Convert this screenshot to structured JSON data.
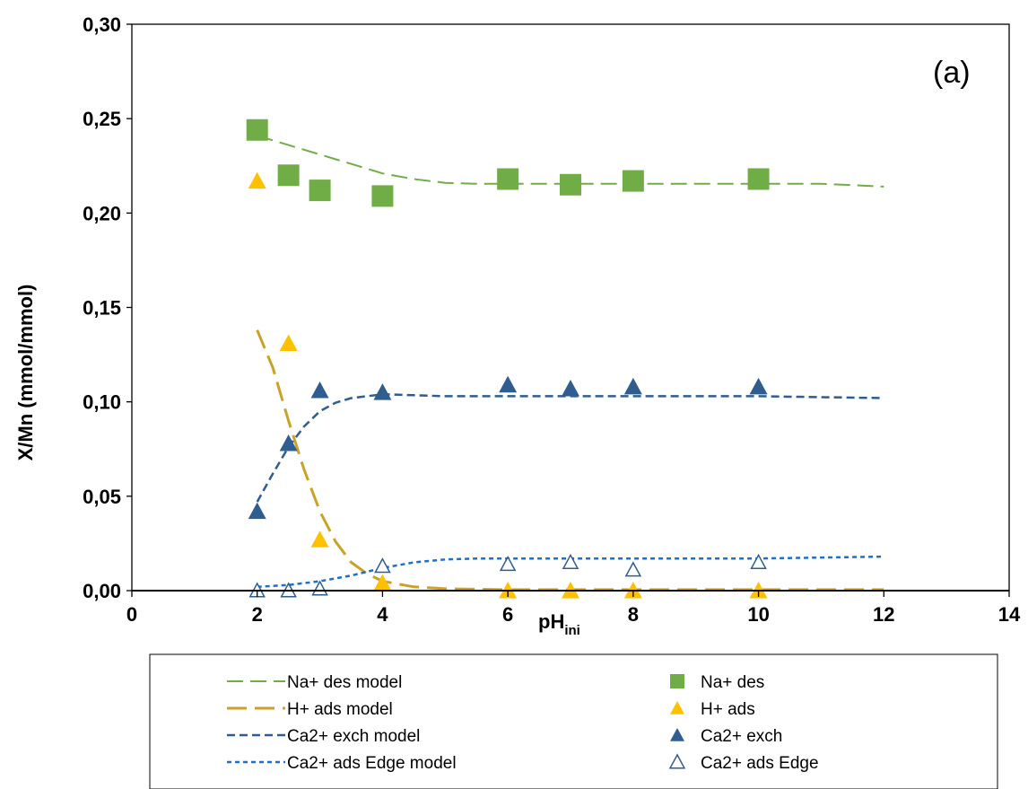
{
  "chart_data": {
    "type": "scatter",
    "xlabel": "pH",
    "xlabel_sub": "ini",
    "ylabel": "X/Mn (mmol/mmol)",
    "annotation": "(a)",
    "xlim": [
      0,
      14
    ],
    "ylim": [
      0,
      0.3
    ],
    "x_ticks": [
      0,
      2,
      4,
      6,
      8,
      10,
      12,
      14
    ],
    "y_ticks": [
      0,
      0.05,
      0.1,
      0.15,
      0.2,
      0.25,
      0.3
    ],
    "x_tick_labels": [
      "0",
      "2",
      "4",
      "6",
      "8",
      "10",
      "12",
      "14"
    ],
    "y_tick_labels": [
      "0,00",
      "0,05",
      "0,10",
      "0,15",
      "0,20",
      "0,25",
      "0,30"
    ],
    "grid": false,
    "legend_position": "bottom",
    "series": [
      {
        "name": "Na+ des model",
        "kind": "line",
        "dash": "long",
        "color": "#70ad47",
        "x": [
          2,
          2.5,
          3,
          3.5,
          4,
          4.5,
          5,
          5.5,
          6,
          7,
          8,
          9,
          10,
          11,
          12
        ],
        "y": [
          0.241,
          0.236,
          0.231,
          0.226,
          0.221,
          0.218,
          0.216,
          0.2155,
          0.2155,
          0.2155,
          0.2155,
          0.2155,
          0.2155,
          0.2155,
          0.214
        ]
      },
      {
        "name": "H+ ads model",
        "kind": "line",
        "dash": "long-bold",
        "color": "#c9a227",
        "x": [
          2,
          2.25,
          2.5,
          2.75,
          3,
          3.25,
          3.5,
          3.75,
          4,
          4.5,
          5,
          6,
          8,
          10,
          12
        ],
        "y": [
          0.138,
          0.118,
          0.09,
          0.064,
          0.042,
          0.026,
          0.015,
          0.009,
          0.005,
          0.002,
          0.001,
          0.0005,
          0.0005,
          0.0005,
          0.0005
        ]
      },
      {
        "name": "Ca2+ exch model",
        "kind": "line",
        "dash": "medium",
        "color": "#2f5d8f",
        "x": [
          2,
          2.25,
          2.5,
          2.75,
          3,
          3.25,
          3.5,
          4,
          4.5,
          5,
          6,
          8,
          10,
          12
        ],
        "y": [
          0.047,
          0.062,
          0.076,
          0.087,
          0.095,
          0.0995,
          0.102,
          0.104,
          0.1035,
          0.103,
          0.103,
          0.103,
          0.103,
          0.102
        ]
      },
      {
        "name": "Ca2+ ads Edge model",
        "kind": "line",
        "dash": "short",
        "color": "#1f6fc6",
        "x": [
          2,
          2.5,
          3,
          3.5,
          4,
          4.5,
          5,
          5.5,
          6,
          8,
          10,
          12
        ],
        "y": [
          0.002,
          0.003,
          0.005,
          0.008,
          0.012,
          0.015,
          0.0165,
          0.017,
          0.017,
          0.017,
          0.017,
          0.018
        ]
      },
      {
        "name": "Na+ des",
        "kind": "marker",
        "marker": "square",
        "color": "#70ad47",
        "x": [
          2,
          2.5,
          3,
          4,
          6,
          7,
          8,
          10
        ],
        "y": [
          0.244,
          0.22,
          0.212,
          0.209,
          0.218,
          0.215,
          0.217,
          0.218
        ]
      },
      {
        "name": "H+ ads",
        "kind": "marker",
        "marker": "triangle",
        "color": "#ffc000",
        "x": [
          2,
          2.5,
          3,
          4,
          6,
          7,
          8,
          10
        ],
        "y": [
          0.217,
          0.131,
          0.027,
          0.004,
          0.0,
          0.0,
          0.0,
          0.0
        ]
      },
      {
        "name": "Ca2+ exch",
        "kind": "marker",
        "marker": "triangle",
        "color": "#2f5d8f",
        "x": [
          2,
          2.5,
          3,
          4,
          6,
          7,
          8,
          10
        ],
        "y": [
          0.042,
          0.078,
          0.106,
          0.105,
          0.109,
          0.107,
          0.108,
          0.108
        ]
      },
      {
        "name": "Ca2+ ads Edge",
        "kind": "marker",
        "marker": "triangle-open",
        "color": "#2f5d8f",
        "x": [
          2,
          2.5,
          3,
          4,
          6,
          7,
          8,
          10
        ],
        "y": [
          0.0,
          0.0,
          0.001,
          0.013,
          0.014,
          0.015,
          0.011,
          0.015
        ]
      }
    ]
  }
}
